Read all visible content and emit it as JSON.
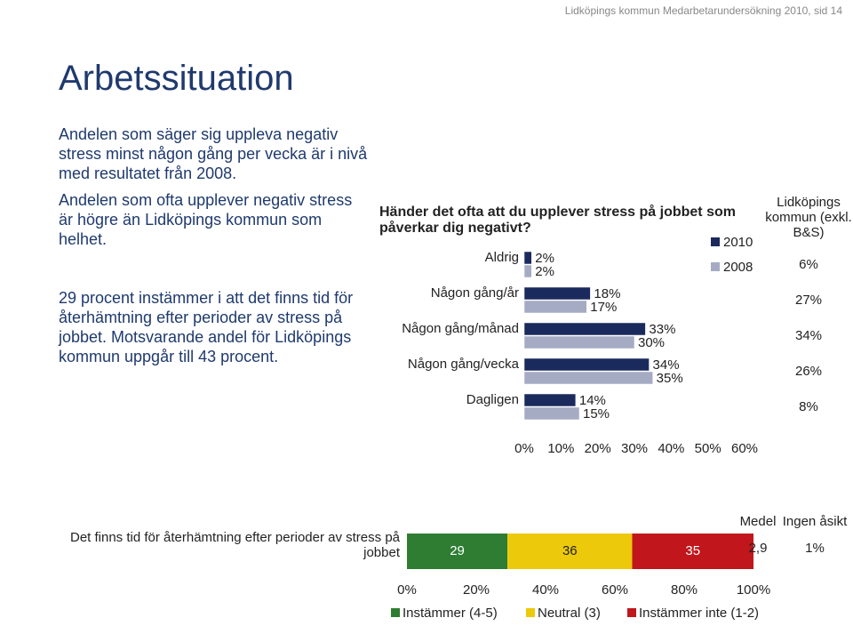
{
  "header": "Lidköpings kommun Medarbetarundersökning 2010, sid 14",
  "title": "Arbetssituation",
  "paragraphs": [
    "Andelen som säger sig uppleva negativ stress minst någon gång per vecka är i nivå med resultatet från 2008.",
    "Andelen som ofta upplever negativ stress är högre än Lidköpings kommun som helhet.",
    "29 procent instämmer i att det finns tid för återhämtning efter perioder av stress på jobbet. Motsvarande andel för Lidköpings kommun uppgår till 43 procent."
  ],
  "chart_data": [
    {
      "type": "hbar",
      "title": "Händer det ofta att du upplever stress på jobbet som påverkar dig negativt?",
      "categories": [
        "Aldrig",
        "Någon gång/år",
        "Någon gång/månad",
        "Någon gång/vecka",
        "Dagligen"
      ],
      "series": [
        {
          "name": "2010",
          "color": "#1b2a5c",
          "values": [
            2,
            18,
            33,
            34,
            14
          ],
          "value_labels": [
            "2%",
            "18%",
            "33%",
            "34%",
            "14%"
          ]
        },
        {
          "name": "2008",
          "color": "#a6abc4",
          "values": [
            2,
            17,
            30,
            35,
            15
          ],
          "value_labels": [
            "2%",
            "17%",
            "30%",
            "35%",
            "15%"
          ]
        }
      ],
      "xlim": [
        0,
        60
      ],
      "xticks": [
        {
          "value": 0,
          "label": "0%"
        },
        {
          "value": 10,
          "label": "10%"
        },
        {
          "value": 20,
          "label": "20%"
        },
        {
          "value": 30,
          "label": "30%"
        },
        {
          "value": 40,
          "label": "40%"
        },
        {
          "value": 50,
          "label": "50%"
        },
        {
          "value": 60,
          "label": "60%"
        }
      ],
      "columns": [
        {
          "name": "Lidköpings kommun (exkl. B&S)",
          "values": [
            6,
            27,
            34,
            26,
            8
          ],
          "value_labels": [
            "6%",
            "27%",
            "34%",
            "26%",
            "8%"
          ]
        }
      ]
    },
    {
      "type": "stacked",
      "categories": [
        "Det finns tid för återhämtning efter perioder av stress på jobbet"
      ],
      "series": [
        {
          "name": "Instämmer (4-5)",
          "color": "#2e7d32",
          "values": [
            29
          ]
        },
        {
          "name": "Neutral (3)",
          "color": "#ecc90a",
          "values": [
            36
          ]
        },
        {
          "name": "Instämmer inte (1-2)",
          "color": "#c0161c",
          "values": [
            35
          ]
        }
      ],
      "xlim": [
        0,
        100
      ],
      "xticks": [
        {
          "value": 0,
          "label": "0%"
        },
        {
          "value": 20,
          "label": "20%"
        },
        {
          "value": 40,
          "label": "40%"
        },
        {
          "value": 60,
          "label": "60%"
        },
        {
          "value": 80,
          "label": "80%"
        },
        {
          "value": 100,
          "label": "100%"
        }
      ],
      "columns": [
        {
          "name": "Medel",
          "values": [
            2.9
          ],
          "value_labels": [
            "2,9"
          ]
        },
        {
          "name": "Ingen åsikt",
          "values": [
            1
          ],
          "value_labels": [
            "1%"
          ]
        }
      ]
    }
  ]
}
